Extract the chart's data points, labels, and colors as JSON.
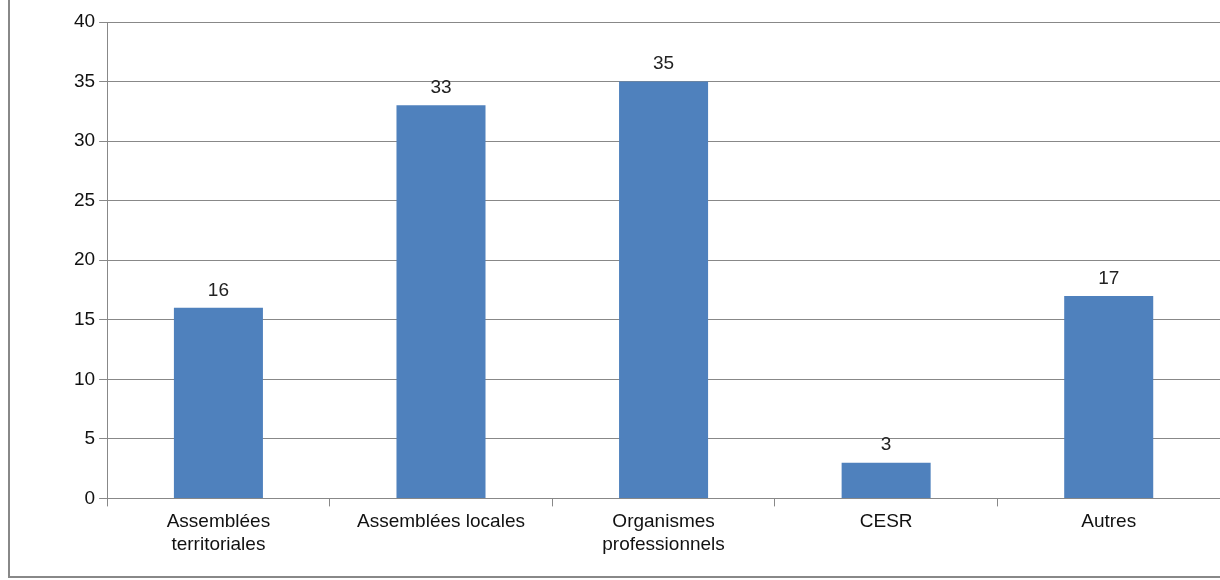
{
  "chart_data": {
    "type": "bar",
    "categories": [
      "Assemblées\nterritoriales",
      "Assemblées locales",
      "Organismes\nprofessionnels",
      "CESR",
      "Autres"
    ],
    "values": [
      16,
      33,
      35,
      3,
      17
    ],
    "color": "#4f81bd",
    "ylim": [
      0,
      40
    ],
    "yticks": [
      0,
      5,
      10,
      15,
      20,
      25,
      30,
      35,
      40
    ],
    "grid": "y",
    "data_labels": true,
    "legend": false
  }
}
